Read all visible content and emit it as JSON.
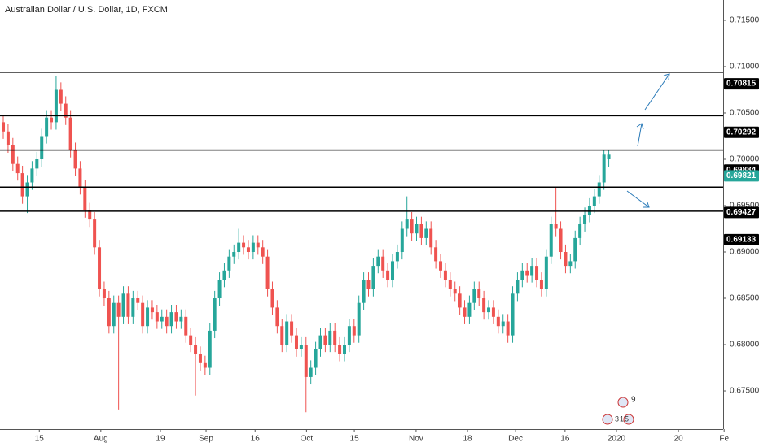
{
  "chart_data": {
    "type": "candlestick",
    "title": "Australian Dollar / U.S. Dollar, 1D, FXCM",
    "up_color": "#26a69a",
    "down_color": "#ef5350",
    "open": [
      0.704,
      0.703,
      0.7015,
      0.6995,
      0.6985,
      0.696,
      0.6975,
      0.699,
      0.7,
      0.7025,
      0.7045,
      0.704,
      0.7075,
      0.706,
      0.7045,
      0.701,
      0.699,
      0.697,
      0.6945,
      0.6935,
      0.6905,
      0.686,
      0.685,
      0.682,
      0.6845,
      0.683,
      0.6855,
      0.683,
      0.685,
      0.6845,
      0.682,
      0.684,
      0.6835,
      0.6825,
      0.683,
      0.682,
      0.6835,
      0.6825,
      0.683,
      0.681,
      0.68,
      0.679,
      0.678,
      0.6775,
      0.6815,
      0.685,
      0.687,
      0.688,
      0.6895,
      0.69,
      0.691,
      0.6905,
      0.69,
      0.691,
      0.6905,
      0.6895,
      0.686,
      0.684,
      0.682,
      0.68,
      0.6825,
      0.681,
      0.6795,
      0.68,
      0.6765,
      0.6775,
      0.6795,
      0.681,
      0.68,
      0.6815,
      0.68,
      0.679,
      0.68,
      0.682,
      0.681,
      0.6845,
      0.687,
      0.686,
      0.6885,
      0.6895,
      0.688,
      0.687,
      0.689,
      0.69,
      0.6925,
      0.6935,
      0.692,
      0.693,
      0.6915,
      0.6925,
      0.6905,
      0.689,
      0.688,
      0.687,
      0.686,
      0.6855,
      0.684,
      0.683,
      0.6845,
      0.686,
      0.685,
      0.6835,
      0.684,
      0.683,
      0.682,
      0.6825,
      0.681,
      0.6855,
      0.687,
      0.688,
      0.6875,
      0.6885,
      0.687,
      0.686,
      0.6895,
      0.693,
      0.6925,
      0.69,
      0.6885,
      0.689,
      0.6915,
      0.693,
      0.694,
      0.695,
      0.696,
      0.6975,
      0.7
    ],
    "high": [
      0.7048,
      0.7038,
      0.7023,
      0.7003,
      0.6993,
      0.6983,
      0.6998,
      0.7008,
      0.7033,
      0.7053,
      0.7053,
      0.709,
      0.7083,
      0.7068,
      0.7053,
      0.7018,
      0.6998,
      0.6978,
      0.6953,
      0.6943,
      0.6913,
      0.6868,
      0.6858,
      0.6853,
      0.6853,
      0.6863,
      0.6863,
      0.6858,
      0.6858,
      0.6853,
      0.6848,
      0.6848,
      0.6843,
      0.6838,
      0.6838,
      0.6843,
      0.6843,
      0.6838,
      0.6838,
      0.6818,
      0.6808,
      0.6798,
      0.6788,
      0.6823,
      0.6858,
      0.6878,
      0.6888,
      0.6903,
      0.6908,
      0.6925,
      0.6918,
      0.6913,
      0.6918,
      0.6918,
      0.6913,
      0.6903,
      0.6868,
      0.6848,
      0.6828,
      0.6833,
      0.6833,
      0.6818,
      0.6808,
      0.6808,
      0.6783,
      0.6803,
      0.6818,
      0.6818,
      0.6823,
      0.6823,
      0.6808,
      0.6808,
      0.6828,
      0.6828,
      0.6853,
      0.6878,
      0.6878,
      0.6893,
      0.6903,
      0.6903,
      0.6888,
      0.6898,
      0.6908,
      0.6933,
      0.696,
      0.6943,
      0.6938,
      0.6938,
      0.6933,
      0.6933,
      0.6913,
      0.6898,
      0.6888,
      0.6878,
      0.6868,
      0.6863,
      0.6848,
      0.6853,
      0.6868,
      0.6868,
      0.6858,
      0.6848,
      0.6848,
      0.6838,
      0.6833,
      0.6833,
      0.6863,
      0.6878,
      0.6888,
      0.6888,
      0.6893,
      0.6893,
      0.6878,
      0.6903,
      0.6938,
      0.697,
      0.6933,
      0.6908,
      0.6898,
      0.6923,
      0.6938,
      0.6948,
      0.6958,
      0.6968,
      0.6983,
      0.701,
      0.701
    ],
    "low": [
      0.7022,
      0.7007,
      0.6987,
      0.6977,
      0.6952,
      0.6942,
      0.6967,
      0.6982,
      0.6992,
      0.7017,
      0.7032,
      0.7032,
      0.7052,
      0.7037,
      0.7002,
      0.6982,
      0.6962,
      0.6937,
      0.6927,
      0.6897,
      0.6852,
      0.6842,
      0.6812,
      0.6812,
      0.673,
      0.6822,
      0.6822,
      0.6822,
      0.6837,
      0.6812,
      0.6812,
      0.6827,
      0.6817,
      0.6817,
      0.6812,
      0.6812,
      0.6817,
      0.6817,
      0.6802,
      0.6792,
      0.6745,
      0.6772,
      0.6767,
      0.6767,
      0.6807,
      0.6842,
      0.6862,
      0.6872,
      0.6887,
      0.6892,
      0.6897,
      0.6892,
      0.6892,
      0.6897,
      0.6887,
      0.6852,
      0.6832,
      0.6812,
      0.6792,
      0.6792,
      0.6802,
      0.6787,
      0.6787,
      0.6727,
      0.6757,
      0.6767,
      0.6787,
      0.6792,
      0.6792,
      0.6792,
      0.6782,
      0.6782,
      0.6792,
      0.6802,
      0.6802,
      0.6837,
      0.6852,
      0.6852,
      0.6877,
      0.6872,
      0.6862,
      0.6862,
      0.6882,
      0.6892,
      0.6917,
      0.6912,
      0.6912,
      0.6907,
      0.6907,
      0.6897,
      0.6882,
      0.6872,
      0.6862,
      0.6852,
      0.6847,
      0.6832,
      0.6822,
      0.6822,
      0.6837,
      0.6842,
      0.6827,
      0.6827,
      0.6822,
      0.6812,
      0.6812,
      0.6802,
      0.6802,
      0.6847,
      0.6862,
      0.6867,
      0.6867,
      0.6862,
      0.6852,
      0.6852,
      0.6887,
      0.6917,
      0.6892,
      0.6877,
      0.6877,
      0.6882,
      0.6907,
      0.6922,
      0.6932,
      0.6942,
      0.6952,
      0.6967,
      0.6992
    ],
    "close": [
      0.703,
      0.7015,
      0.6995,
      0.6985,
      0.696,
      0.6975,
      0.699,
      0.7,
      0.7025,
      0.7045,
      0.704,
      0.7075,
      0.706,
      0.7045,
      0.701,
      0.699,
      0.697,
      0.6945,
      0.6935,
      0.6905,
      0.686,
      0.685,
      0.682,
      0.6845,
      0.683,
      0.6855,
      0.683,
      0.685,
      0.6845,
      0.682,
      0.684,
      0.6835,
      0.6825,
      0.683,
      0.682,
      0.6835,
      0.6825,
      0.683,
      0.681,
      0.68,
      0.679,
      0.678,
      0.6775,
      0.6815,
      0.685,
      0.687,
      0.688,
      0.6895,
      0.69,
      0.691,
      0.6905,
      0.69,
      0.691,
      0.6905,
      0.6895,
      0.686,
      0.684,
      0.682,
      0.68,
      0.6825,
      0.681,
      0.6795,
      0.68,
      0.6765,
      0.6775,
      0.6795,
      0.681,
      0.68,
      0.6815,
      0.68,
      0.679,
      0.68,
      0.682,
      0.681,
      0.6845,
      0.687,
      0.686,
      0.6885,
      0.6895,
      0.688,
      0.687,
      0.689,
      0.69,
      0.6925,
      0.6935,
      0.692,
      0.693,
      0.6915,
      0.6925,
      0.6905,
      0.689,
      0.688,
      0.687,
      0.686,
      0.6855,
      0.684,
      0.683,
      0.6845,
      0.686,
      0.685,
      0.6835,
      0.684,
      0.683,
      0.682,
      0.6825,
      0.681,
      0.6855,
      0.687,
      0.688,
      0.6875,
      0.6885,
      0.687,
      0.686,
      0.6895,
      0.693,
      0.6925,
      0.69,
      0.6885,
      0.689,
      0.6915,
      0.693,
      0.694,
      0.695,
      0.696,
      0.6975,
      0.7005,
      0.7005
    ],
    "xlim": [
      -0.68,
      149.8
    ],
    "xticks": [
      {
        "value": 7.5,
        "label": "15"
      },
      {
        "value": 20.3,
        "label": "Aug"
      },
      {
        "value": 32.7,
        "label": "19"
      },
      {
        "value": 42.2,
        "label": "Sep"
      },
      {
        "value": 52.4,
        "label": "16"
      },
      {
        "value": 63.1,
        "label": "Oct"
      },
      {
        "value": 73.05,
        "label": "15"
      },
      {
        "value": 85.9,
        "label": "Nov"
      },
      {
        "value": 96.6,
        "label": "18"
      },
      {
        "value": 106.6,
        "label": "Dec"
      },
      {
        "value": 116.9,
        "label": "16"
      },
      {
        "value": 127.6,
        "label": "2020"
      },
      {
        "value": 140.5,
        "label": "20"
      },
      {
        "value": 150,
        "label": "Fe"
      }
    ],
    "ylim": [
      0.67088,
      0.71719
    ],
    "yticks": [
      {
        "value": 0.715,
        "label": "0.71500"
      },
      {
        "value": 0.71,
        "label": "0.71000"
      },
      {
        "value": 0.705,
        "label": "0.70500"
      },
      {
        "value": 0.7,
        "label": "0.70000"
      },
      {
        "value": 0.695,
        "label": "0.69500"
      },
      {
        "value": 0.69,
        "label": "0.69000"
      },
      {
        "value": 0.685,
        "label": "0.68500"
      },
      {
        "value": 0.68,
        "label": "0.68000"
      },
      {
        "value": 0.675,
        "label": "0.67500"
      }
    ],
    "levels": [
      0.7094,
      0.7047,
      0.701,
      0.697,
      0.6944
    ],
    "price_labels": [
      0.70815,
      0.70292,
      0.69884,
      0.69427,
      0.69133
    ],
    "last_price": 0.69821,
    "event_labels": [
      "9",
      "3",
      "1",
      "5"
    ]
  }
}
